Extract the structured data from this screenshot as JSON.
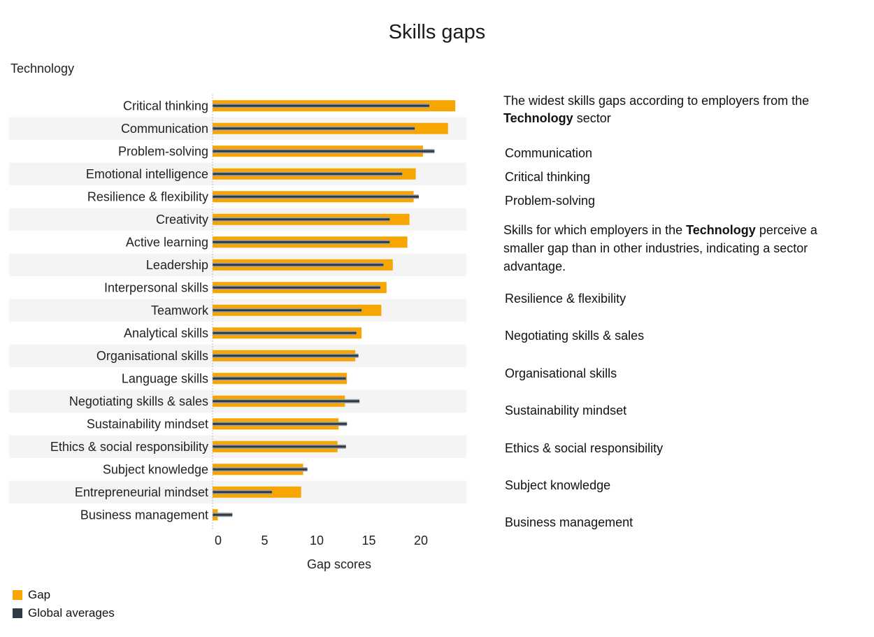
{
  "chart_data": {
    "type": "bar",
    "title": "Skills gaps",
    "subtitle": "Technology",
    "xlabel": "Gap scores",
    "ylabel": "",
    "xlim": [
      0,
      24
    ],
    "xticks": [
      "0",
      "5",
      "10",
      "15",
      "20"
    ],
    "categories": [
      "Critical thinking",
      "Communication",
      "Problem-solving",
      "Emotional intelligence",
      "Resilience & flexibility",
      "Creativity",
      "Active learning",
      "Leadership",
      "Interpersonal skills",
      "Teamwork",
      "Analytical skills",
      "Organisational skills",
      "Language skills",
      "Negotiating skills & sales",
      "Sustainability mindset",
      "Ethics & social responsibility",
      "Subject knowledge",
      "Entrepreneurial mindset",
      "Business management"
    ],
    "series": [
      {
        "name": "Gap",
        "color": "#f7a500",
        "values": [
          23.3,
          22.6,
          20.2,
          19.5,
          19.3,
          18.9,
          18.7,
          17.3,
          16.7,
          16.2,
          14.3,
          13.7,
          12.9,
          12.7,
          12.1,
          12.0,
          8.7,
          8.5,
          0.5
        ]
      },
      {
        "name": "Global averages",
        "color": "#2e3a45",
        "values": [
          20.8,
          19.4,
          21.3,
          18.2,
          19.8,
          17.0,
          17.0,
          16.4,
          16.1,
          14.3,
          13.8,
          14.0,
          12.8,
          14.1,
          12.9,
          12.8,
          9.1,
          5.7,
          1.9
        ]
      }
    ]
  },
  "legend": {
    "gap": "Gap",
    "global": "Global averages"
  },
  "side": {
    "intro1_a": "The widest skills gaps according to employers from the",
    "intro1_b": "Technology",
    "intro1_c": "sector",
    "top_gaps": [
      "Communication",
      "Critical thinking",
      "Problem-solving"
    ],
    "intro2_a": "Skills for which employers in the",
    "intro2_b": "Technology",
    "intro2_c": "perceive a smaller gap than in other industries, indicating a sector advantage.",
    "advantages": [
      "Resilience & flexibility",
      "Negotiating skills & sales",
      "Organisational skills",
      "Sustainability mindset",
      "Ethics & social responsibility",
      "Subject knowledge",
      "Business management"
    ]
  }
}
